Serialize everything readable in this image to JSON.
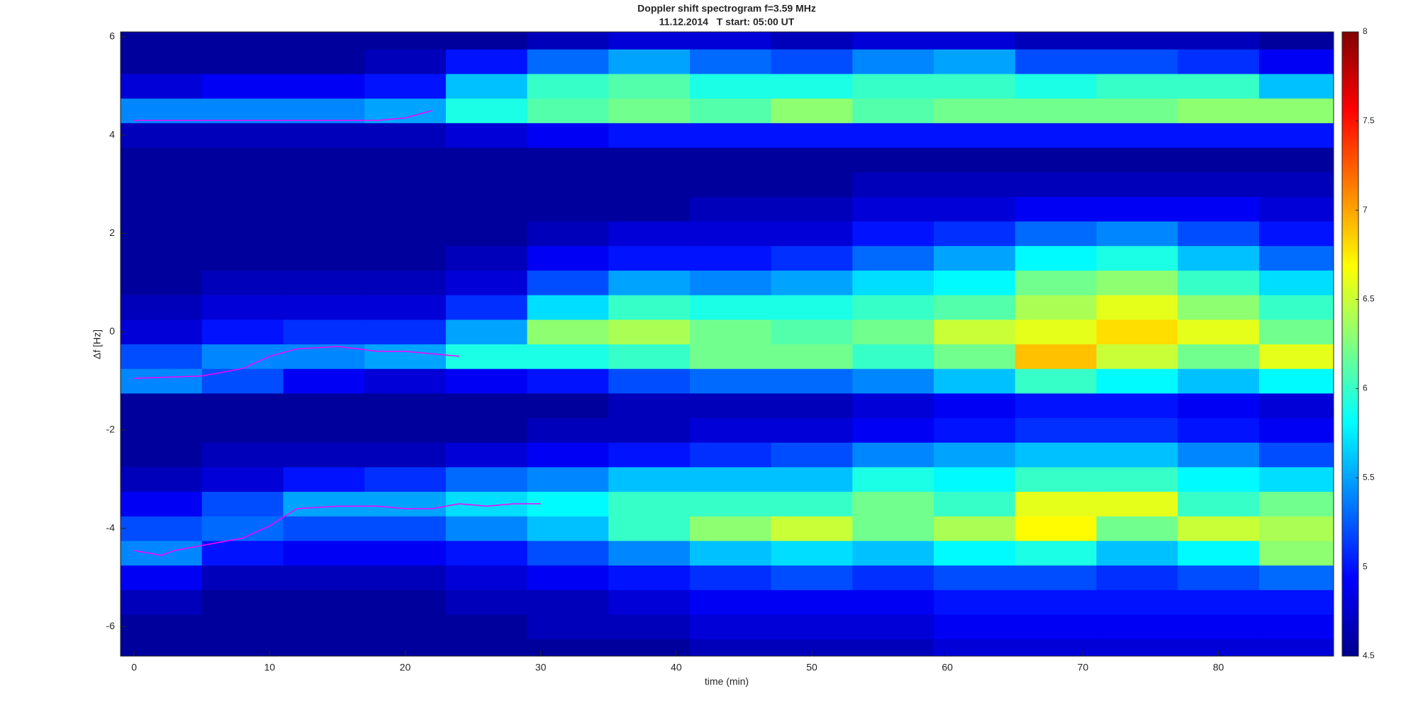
{
  "chart_data": {
    "type": "heatmap",
    "title": "Doppler shift spectrogram f=3.59 MHz",
    "subtitle": "11.12.2014   T start: 05:00 UT",
    "x_label": "time (min)",
    "y_label": "Δf [Hz]",
    "colormap": "jet",
    "xlim": [
      -1,
      88.5
    ],
    "xticks": [
      0,
      10,
      20,
      30,
      40,
      50,
      60,
      70,
      80
    ],
    "ylim": [
      -6.6,
      6.1
    ],
    "yticks": [
      -6,
      -4,
      -2,
      0,
      2,
      4,
      6
    ],
    "clim": [
      4.5,
      8
    ],
    "cticks": [
      4.5,
      5,
      5.5,
      6,
      6.5,
      7,
      7.5,
      8
    ],
    "x": [
      2,
      8,
      14,
      20,
      26,
      32,
      38,
      44,
      50,
      56,
      62,
      68,
      74,
      80,
      86
    ],
    "y": [
      -6.5,
      -6,
      -5.5,
      -5,
      -4.5,
      -4,
      -3.5,
      -3,
      -2.5,
      -2,
      -1.5,
      -1,
      -0.5,
      0,
      0.5,
      1,
      1.5,
      2,
      2.5,
      3,
      3.5,
      4,
      4.5,
      5,
      5.5,
      6
    ],
    "z": [
      [
        4.6,
        4.6,
        4.6,
        4.6,
        4.6,
        4.6,
        4.6,
        4.7,
        4.7,
        4.7,
        4.8,
        4.8,
        4.8,
        4.8,
        4.8
      ],
      [
        4.6,
        4.6,
        4.6,
        4.6,
        4.6,
        4.7,
        4.7,
        4.8,
        4.8,
        4.8,
        4.9,
        4.9,
        4.9,
        4.9,
        4.9
      ],
      [
        4.7,
        4.6,
        4.6,
        4.6,
        4.7,
        4.7,
        4.8,
        4.9,
        4.9,
        4.9,
        5.0,
        5.0,
        5.0,
        5.0,
        5.0
      ],
      [
        4.9,
        4.7,
        4.7,
        4.7,
        4.8,
        4.9,
        5.0,
        5.1,
        5.2,
        5.1,
        5.2,
        5.2,
        5.1,
        5.2,
        5.3
      ],
      [
        5.4,
        5.0,
        4.9,
        4.9,
        5.0,
        5.2,
        5.4,
        5.6,
        5.7,
        5.6,
        5.8,
        5.9,
        5.6,
        5.8,
        6.3
      ],
      [
        5.2,
        5.3,
        5.2,
        5.2,
        5.4,
        5.6,
        6.0,
        6.3,
        6.5,
        6.2,
        6.4,
        6.7,
        6.2,
        6.5,
        6.4
      ],
      [
        4.9,
        5.2,
        5.5,
        5.5,
        5.7,
        5.8,
        6.0,
        6.0,
        6.0,
        6.2,
        6.0,
        6.6,
        6.6,
        6.0,
        6.2
      ],
      [
        4.7,
        4.8,
        5.0,
        5.1,
        5.3,
        5.4,
        5.6,
        5.6,
        5.6,
        5.9,
        5.8,
        6.0,
        6.0,
        5.8,
        5.7
      ],
      [
        4.6,
        4.7,
        4.7,
        4.7,
        4.8,
        4.9,
        5.0,
        5.1,
        5.2,
        5.4,
        5.5,
        5.6,
        5.6,
        5.4,
        5.2
      ],
      [
        4.6,
        4.6,
        4.6,
        4.6,
        4.6,
        4.7,
        4.7,
        4.8,
        4.8,
        4.9,
        5.0,
        5.1,
        5.1,
        5.0,
        4.9
      ],
      [
        4.6,
        4.6,
        4.6,
        4.6,
        4.6,
        4.6,
        4.7,
        4.7,
        4.7,
        4.8,
        4.9,
        5.0,
        5.0,
        4.9,
        4.8
      ],
      [
        5.4,
        5.2,
        4.9,
        4.8,
        4.9,
        5.0,
        5.2,
        5.3,
        5.3,
        5.4,
        5.6,
        6.0,
        5.8,
        5.6,
        5.8
      ],
      [
        5.2,
        5.4,
        5.4,
        5.5,
        5.9,
        5.9,
        6.0,
        6.2,
        6.2,
        6.0,
        6.2,
        6.9,
        6.5,
        6.2,
        6.6
      ],
      [
        4.8,
        5.0,
        5.1,
        5.1,
        5.5,
        6.3,
        6.4,
        6.2,
        6.1,
        6.2,
        6.5,
        6.6,
        6.8,
        6.6,
        6.2
      ],
      [
        4.7,
        4.8,
        4.8,
        4.8,
        5.1,
        5.7,
        6.0,
        5.9,
        5.9,
        6.0,
        6.1,
        6.4,
        6.6,
        6.3,
        6.0
      ],
      [
        4.6,
        4.7,
        4.7,
        4.7,
        4.8,
        5.2,
        5.5,
        5.4,
        5.5,
        5.7,
        5.8,
        6.2,
        6.3,
        6.0,
        5.7
      ],
      [
        4.6,
        4.6,
        4.6,
        4.6,
        4.7,
        4.9,
        5.0,
        5.0,
        5.1,
        5.3,
        5.5,
        5.8,
        5.9,
        5.6,
        5.3
      ],
      [
        4.6,
        4.6,
        4.6,
        4.6,
        4.6,
        4.7,
        4.8,
        4.8,
        4.8,
        5.0,
        5.1,
        5.3,
        5.4,
        5.2,
        5.0
      ],
      [
        4.6,
        4.6,
        4.6,
        4.6,
        4.6,
        4.6,
        4.6,
        4.7,
        4.7,
        4.8,
        4.8,
        4.9,
        4.9,
        4.9,
        4.8
      ],
      [
        4.6,
        4.6,
        4.6,
        4.6,
        4.6,
        4.6,
        4.6,
        4.6,
        4.6,
        4.7,
        4.7,
        4.7,
        4.7,
        4.7,
        4.7
      ],
      [
        4.6,
        4.6,
        4.6,
        4.6,
        4.6,
        4.6,
        4.6,
        4.6,
        4.6,
        4.6,
        4.6,
        4.6,
        4.6,
        4.6,
        4.6
      ],
      [
        4.7,
        4.7,
        4.7,
        4.7,
        4.8,
        4.9,
        5.0,
        5.0,
        5.0,
        5.0,
        5.0,
        5.0,
        5.0,
        5.0,
        5.0
      ],
      [
        5.4,
        5.4,
        5.4,
        5.5,
        5.9,
        6.1,
        6.2,
        6.1,
        6.3,
        6.1,
        6.2,
        6.2,
        6.2,
        6.3,
        6.3
      ],
      [
        4.8,
        4.9,
        4.9,
        5.0,
        5.6,
        6.0,
        6.1,
        5.9,
        5.9,
        6.0,
        6.0,
        5.9,
        6.0,
        6.0,
        5.6
      ],
      [
        4.6,
        4.6,
        4.6,
        4.7,
        5.0,
        5.3,
        5.5,
        5.3,
        5.2,
        5.4,
        5.5,
        5.2,
        5.2,
        5.1,
        4.9
      ],
      [
        4.6,
        4.6,
        4.6,
        4.6,
        4.6,
        4.7,
        4.8,
        4.8,
        4.7,
        4.8,
        4.8,
        4.7,
        4.7,
        4.7,
        4.6
      ]
    ],
    "series": [
      {
        "color": "#ff00ff",
        "x": [
          0,
          18,
          20,
          22
        ],
        "values": [
          4.3,
          4.3,
          4.35,
          4.5
        ]
      },
      {
        "color": "#ff00ff",
        "x": [
          0,
          5,
          8,
          10,
          12,
          15,
          18,
          20,
          22,
          24
        ],
        "values": [
          -0.95,
          -0.9,
          -0.75,
          -0.5,
          -0.35,
          -0.3,
          -0.4,
          -0.4,
          -0.45,
          -0.5
        ]
      },
      {
        "color": "#ff00ff",
        "x": [
          0,
          2,
          3,
          5,
          8,
          10,
          12,
          15,
          18,
          20,
          22,
          24,
          26,
          28,
          30
        ],
        "values": [
          -4.45,
          -4.55,
          -4.45,
          -4.35,
          -4.2,
          -3.95,
          -3.6,
          -3.55,
          -3.55,
          -3.6,
          -3.6,
          -3.5,
          -3.55,
          -3.5,
          -3.5
        ]
      }
    ]
  }
}
